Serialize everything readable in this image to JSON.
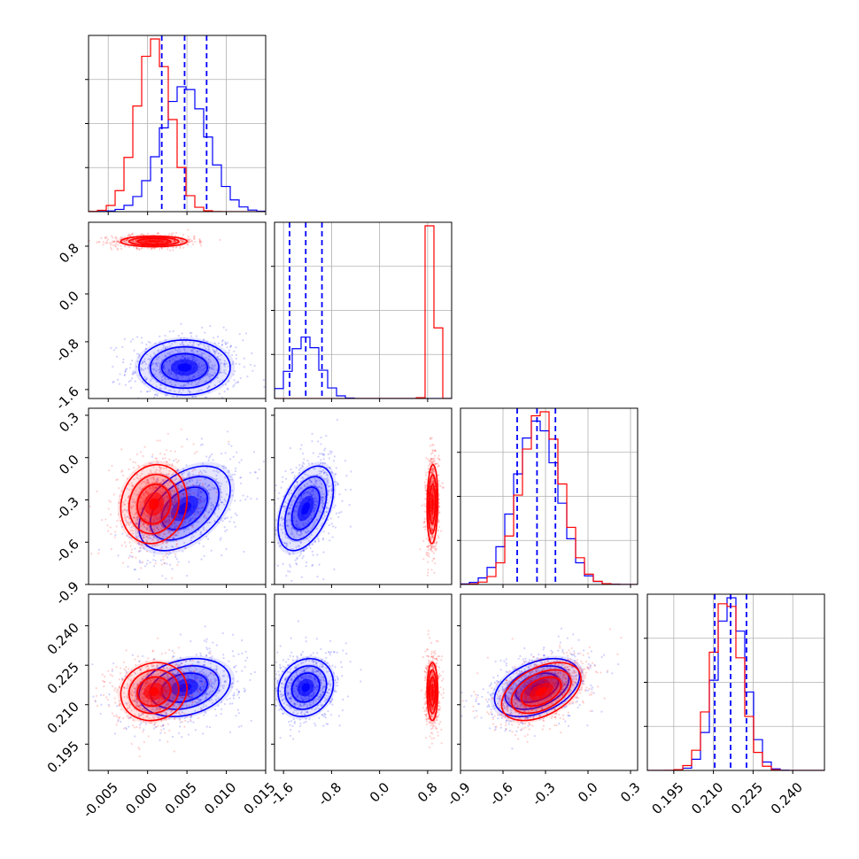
{
  "chart_data": {
    "type": "corner",
    "parameters": [
      {
        "ticks": [
          "-0.005",
          "0.000",
          "0.005",
          "0.010",
          "0.015"
        ],
        "tick_values": [
          -0.005,
          0.0,
          0.005,
          0.01,
          0.015
        ],
        "range": [
          -0.0075,
          0.015
        ]
      },
      {
        "ticks": [
          "-1.6",
          "-0.8",
          "0.0",
          "0.8"
        ],
        "tick_values": [
          -1.6,
          -0.8,
          0.0,
          0.8
        ],
        "range": [
          -1.75,
          1.2
        ]
      },
      {
        "ticks": [
          "-0.9",
          "-0.6",
          "-0.3",
          "0.0",
          "0.3"
        ],
        "tick_values": [
          -0.9,
          -0.6,
          -0.3,
          0.0,
          0.3
        ],
        "range": [
          -0.9,
          0.35
        ]
      },
      {
        "ticks": [
          "0.195",
          "0.210",
          "0.225",
          "0.240"
        ],
        "tick_values": [
          0.195,
          0.21,
          0.225,
          0.24
        ],
        "range": [
          0.185,
          0.252
        ]
      }
    ],
    "series": [
      {
        "color": "#0000ff",
        "means": [
          0.0047,
          -1.23,
          -0.36,
          0.2165
        ],
        "stds": [
          0.0029,
          0.23,
          0.15,
          0.0055
        ],
        "quantiles": [
          [
            0.0018,
            0.0047,
            0.0075
          ],
          [
            -1.5,
            -1.23,
            -0.96
          ],
          [
            -0.5,
            -0.36,
            -0.23
          ],
          [
            0.2105,
            0.2165,
            0.2225
          ]
        ],
        "corr": [
          0.0,
          0.0,
          0.45,
          0.25,
          0.0,
          0.0,
          0.45,
          0.15,
          0.0,
          0.0,
          0.25,
          0.4
        ]
      },
      {
        "color": "#ff0000",
        "means": [
          0.0008,
          0.88,
          -0.33,
          0.215
        ],
        "stds": [
          0.0021,
          0.045,
          0.14,
          0.0055
        ],
        "corr": [
          0.0,
          0.0,
          0.1,
          0.1,
          0.0,
          0.0,
          0.1,
          0.0,
          0.0,
          0.0,
          0.1,
          0.45
        ]
      }
    ],
    "hist_grid_lines": 3,
    "grid": true,
    "tick_rotation_deg": 45
  }
}
